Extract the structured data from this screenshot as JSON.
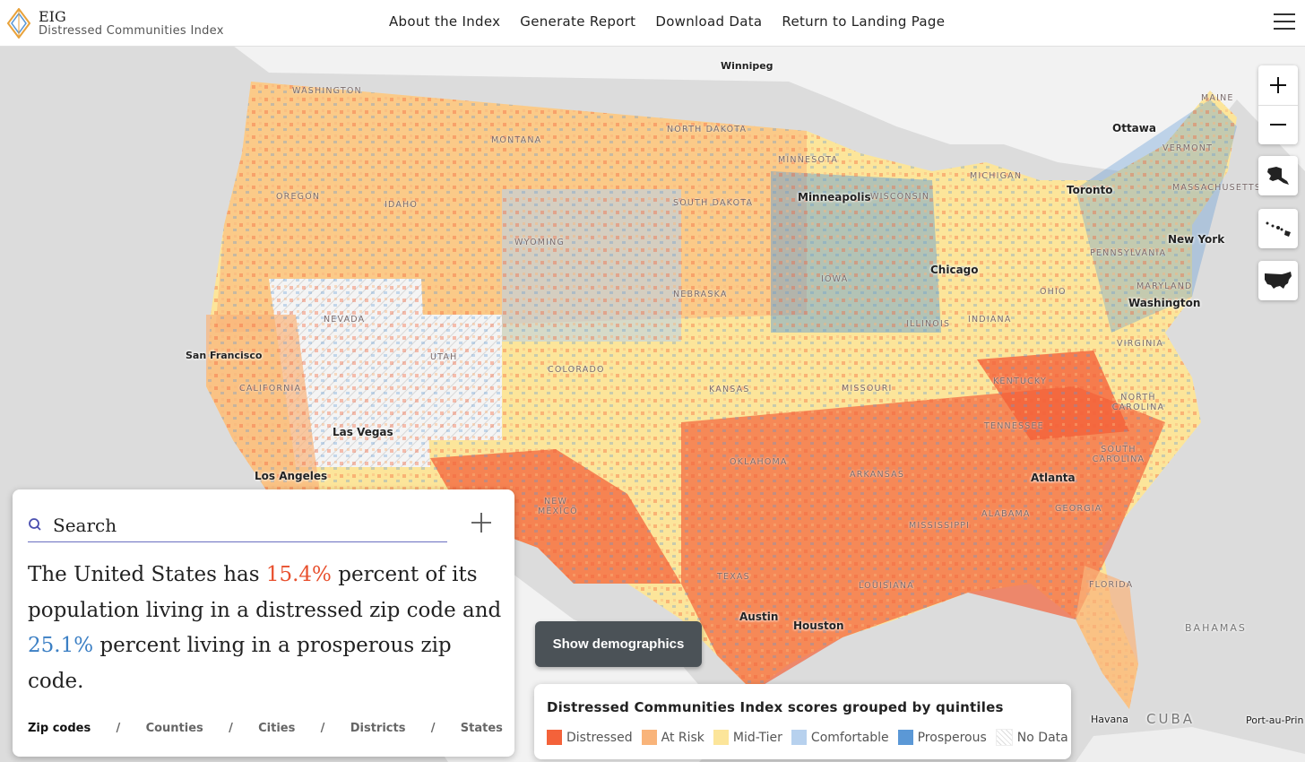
{
  "header": {
    "brand_title": "EIG",
    "brand_subtitle": "Distressed Communities Index",
    "nav": [
      "About the Index",
      "Generate Report",
      "Download Data",
      "Return to Landing Page"
    ]
  },
  "map": {
    "cities": [
      {
        "name": "Winnipeg"
      },
      {
        "name": "Ottawa"
      },
      {
        "name": "Toronto"
      },
      {
        "name": "New York"
      },
      {
        "name": "Washington"
      },
      {
        "name": "Minneapolis"
      },
      {
        "name": "Chicago"
      },
      {
        "name": "San Francisco"
      },
      {
        "name": "Las Vegas"
      },
      {
        "name": "Los Angeles"
      },
      {
        "name": "Atlanta"
      },
      {
        "name": "Austin"
      },
      {
        "name": "Houston"
      },
      {
        "name": "Havana"
      },
      {
        "name": "Port-au-Prin"
      },
      {
        "name": "CUBA"
      },
      {
        "name": "BAHAMAS"
      }
    ],
    "states": [
      "WASHINGTON",
      "MONTANA",
      "NORTH DAKOTA",
      "MINNESOTA",
      "OREGON",
      "IDAHO",
      "SOUTH DAKOTA",
      "WISCONSIN",
      "MICHIGAN",
      "WYOMING",
      "NEBRASKA",
      "IOWA",
      "NEVADA",
      "UTAH",
      "COLORADO",
      "KANSAS",
      "MISSOURI",
      "ILLINOIS",
      "INDIANA",
      "OHIO",
      "PENNSYLVANIA",
      "CALIFORNIA",
      "KENTUCKY",
      "VIRGINIA",
      "TENNESSEE",
      "NORTH CAROLINA",
      "OKLAHOMA",
      "ARKANSAS",
      "SOUTH CAROLINA",
      "NEW MEXICO",
      "MISSISSIPPI",
      "ALABAMA",
      "GEORGIA",
      "TEXAS",
      "LOUISIANA",
      "FLORIDA",
      "MAINE",
      "VERMONT",
      "MASSACHUSETTS",
      "MARYLAND"
    ]
  },
  "panel": {
    "search_placeholder": "Search",
    "summary_prefix": "The United States has ",
    "distressed_pct": "15.4%",
    "summary_mid": " percent of its population living in a distressed zip code and ",
    "prosperous_pct": "25.1%",
    "summary_suffix": " percent living in a prosperous zip code.",
    "geo_tabs": [
      "Zip codes",
      "Counties",
      "Cities",
      "Districts",
      "States"
    ],
    "selected_tab": "Zip codes"
  },
  "demographics_button": "Show demographics",
  "legend": {
    "title": "Distressed Communities Index scores grouped by quintiles",
    "items": [
      {
        "label": "Distressed",
        "color": "#f4623a"
      },
      {
        "label": "At Risk",
        "color": "#f9b47a"
      },
      {
        "label": "Mid-Tier",
        "color": "#fce59a"
      },
      {
        "label": "Comfortable",
        "color": "#b7d1ee"
      },
      {
        "label": "Prosperous",
        "color": "#5b98d6"
      },
      {
        "label": "No Data",
        "color": "#ffffff"
      }
    ]
  },
  "colors": {
    "distressed": "#e8502e",
    "prosperous": "#3b7fc4"
  }
}
